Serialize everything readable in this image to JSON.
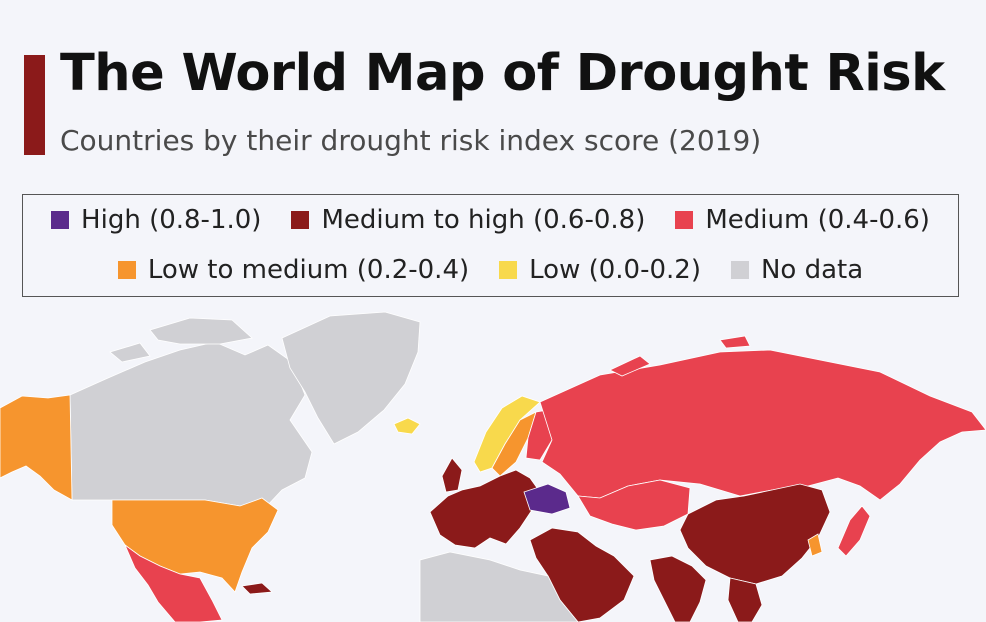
{
  "header": {
    "title": "The World Map of Drought Risk",
    "subtitle": "Countries by their drought risk index score (2019)"
  },
  "legend": {
    "row1": [
      {
        "label": "High (0.8-1.0)",
        "color": "#5b2a8c"
      },
      {
        "label": "Medium to high (0.6-0.8)",
        "color": "#8b1a1a"
      },
      {
        "label": "Medium (0.4-0.6)",
        "color": "#e8424f"
      }
    ],
    "row2": [
      {
        "label": "Low to medium (0.2-0.4)",
        "color": "#f6952e"
      },
      {
        "label": "Low (0.0-0.2)",
        "color": "#f8d94c"
      },
      {
        "label": "No data",
        "color": "#d0d0d4"
      }
    ]
  },
  "regions": [
    {
      "name": "Alaska (USA)",
      "category": "Low to medium (0.2-0.4)"
    },
    {
      "name": "Canada",
      "category": "No data"
    },
    {
      "name": "Greenland",
      "category": "No data"
    },
    {
      "name": "United States",
      "category": "Low to medium (0.2-0.4)"
    },
    {
      "name": "Mexico",
      "category": "Medium (0.4-0.6)"
    },
    {
      "name": "Iceland",
      "category": "Low (0.0-0.2)"
    },
    {
      "name": "Norway",
      "category": "Low (0.0-0.2)"
    },
    {
      "name": "Sweden",
      "category": "Low to medium (0.2-0.4)"
    },
    {
      "name": "Finland",
      "category": "Medium (0.4-0.6)"
    },
    {
      "name": "Russia",
      "category": "Medium (0.4-0.6)"
    },
    {
      "name": "Ukraine",
      "category": "High (0.8-1.0)"
    },
    {
      "name": "Western Europe",
      "category": "Medium to high (0.6-0.8)"
    },
    {
      "name": "Kazakhstan",
      "category": "Medium (0.4-0.6)"
    },
    {
      "name": "China",
      "category": "Medium to high (0.6-0.8)"
    },
    {
      "name": "India",
      "category": "Medium to high (0.6-0.8)"
    },
    {
      "name": "Middle East",
      "category": "Medium to high (0.6-0.8)"
    },
    {
      "name": "North Africa",
      "category": "No data"
    },
    {
      "name": "Japan",
      "category": "Medium (0.4-0.6)"
    }
  ]
}
